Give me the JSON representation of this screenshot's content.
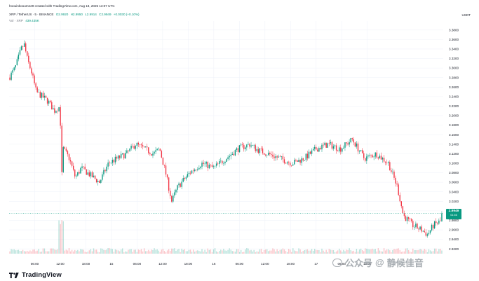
{
  "header": {
    "credit": "hoouinkooume29 created with TradingView.com, Aug 18, 2025 13:07 UTC",
    "legend": {
      "symbol": "XRP / TetherUS · 5 · BINANCE",
      "open": "O2.9920",
      "high": "H2.9950",
      "low": "L2.9914",
      "close": "C2.9949",
      "change": "+0.0030 (+0.10%)"
    },
    "volume": {
      "label": "Vol · XRP",
      "value": "439.435K"
    }
  },
  "currency": "USDT",
  "price_tag": {
    "price": "2.9949",
    "countdown": "01:46"
  },
  "branding": {
    "name": "TradingView"
  },
  "watermark": {
    "text1": "公众号",
    "at": "@",
    "text2": "静候佳音"
  },
  "colors": {
    "up": "#089981",
    "down": "#f23645",
    "text": "#131722",
    "muted": "#787b86",
    "grid": "#f0f3fa"
  },
  "chart_data": {
    "type": "candlestick",
    "y_axis": {
      "ticks": [
        "3.3800",
        "3.3600",
        "3.3400",
        "3.3200",
        "3.3000",
        "3.2800",
        "3.2600",
        "3.2400",
        "3.2200",
        "3.2000",
        "3.1800",
        "3.1600",
        "3.1400",
        "3.1200",
        "3.1000",
        "3.0800",
        "3.0600",
        "3.0400",
        "3.0200",
        "3.0000",
        "2.9800",
        "2.9600",
        "2.9400",
        "2.9200"
      ]
    },
    "ylim": [
      2.91,
      3.39
    ],
    "x_axis": {
      "ticks": [
        "06:00",
        "12:00",
        "18:00",
        "15",
        "06:00",
        "12:00",
        "18:00",
        "16",
        "06:00",
        "12:00",
        "18:00",
        "17",
        "06:00",
        "12:00"
      ],
      "tick_positions": [
        0.085,
        0.17,
        0.255,
        0.34,
        0.425,
        0.51,
        0.595,
        0.68,
        0.765,
        0.85,
        0.935,
        1.02,
        1.105,
        1.19
      ]
    },
    "anchors": [
      [
        0.0,
        3.28
      ],
      [
        0.02,
        3.3
      ],
      [
        0.04,
        3.34
      ],
      [
        0.05,
        3.35
      ],
      [
        0.06,
        3.32
      ],
      [
        0.075,
        3.29
      ],
      [
        0.09,
        3.25
      ],
      [
        0.11,
        3.24
      ],
      [
        0.13,
        3.23
      ],
      [
        0.15,
        3.21
      ],
      [
        0.17,
        3.22
      ],
      [
        0.172,
        3.04
      ],
      [
        0.18,
        3.13
      ],
      [
        0.2,
        3.11
      ],
      [
        0.22,
        3.07
      ],
      [
        0.24,
        3.09
      ],
      [
        0.26,
        3.08
      ],
      [
        0.3,
        3.06
      ],
      [
        0.33,
        3.1
      ],
      [
        0.36,
        3.11
      ],
      [
        0.39,
        3.12
      ],
      [
        0.42,
        3.14
      ],
      [
        0.45,
        3.13
      ],
      [
        0.48,
        3.12
      ],
      [
        0.5,
        3.13
      ],
      [
        0.52,
        3.08
      ],
      [
        0.54,
        3.02
      ],
      [
        0.56,
        3.05
      ],
      [
        0.6,
        3.08
      ],
      [
        0.64,
        3.1
      ],
      [
        0.68,
        3.09
      ],
      [
        0.72,
        3.11
      ],
      [
        0.76,
        3.13
      ],
      [
        0.8,
        3.14
      ],
      [
        0.82,
        3.13
      ],
      [
        0.86,
        3.12
      ],
      [
        0.9,
        3.11
      ],
      [
        0.94,
        3.1
      ],
      [
        0.98,
        3.11
      ],
      [
        1.02,
        3.13
      ],
      [
        1.06,
        3.14
      ],
      [
        1.1,
        3.13
      ],
      [
        1.14,
        3.15
      ],
      [
        1.18,
        3.11
      ],
      [
        1.22,
        3.12
      ],
      [
        1.26,
        3.1
      ],
      [
        1.29,
        3.05
      ],
      [
        1.31,
        2.99
      ],
      [
        1.34,
        2.97
      ],
      [
        1.37,
        2.96
      ],
      [
        1.39,
        2.95
      ],
      [
        1.41,
        2.97
      ],
      [
        1.44,
        2.98
      ]
    ],
    "last_price": 2.9949
  }
}
